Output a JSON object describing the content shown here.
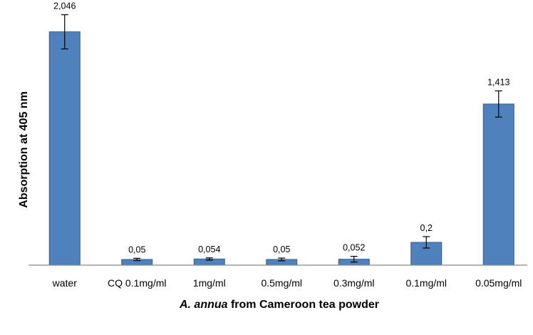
{
  "chart_data": {
    "type": "bar",
    "categories": [
      "water",
      "CQ 0.1mg/ml",
      "1mg/ml",
      "0.5mg/ml",
      "0.3mg/ml",
      "0.1mg/ml",
      "0.05mg/ml"
    ],
    "values": [
      2.046,
      0.05,
      0.054,
      0.05,
      0.052,
      0.2,
      1.413
    ],
    "data_labels": [
      "2,046",
      "0,05",
      "0,054",
      "0,05",
      "0,052",
      "0,2",
      "1,413"
    ],
    "error": [
      0.15,
      0.01,
      0.01,
      0.012,
      0.025,
      0.05,
      0.115
    ],
    "ylabel": "Absorption at 405 nm",
    "xlabel_italic": "A. annua",
    "xlabel_rest": " from Cameroon tea powder",
    "ylim": [
      0,
      2.2
    ],
    "colors": {
      "bar": "#4f81bd",
      "bar_edge": "#385d8a",
      "axis": "#868686"
    }
  }
}
